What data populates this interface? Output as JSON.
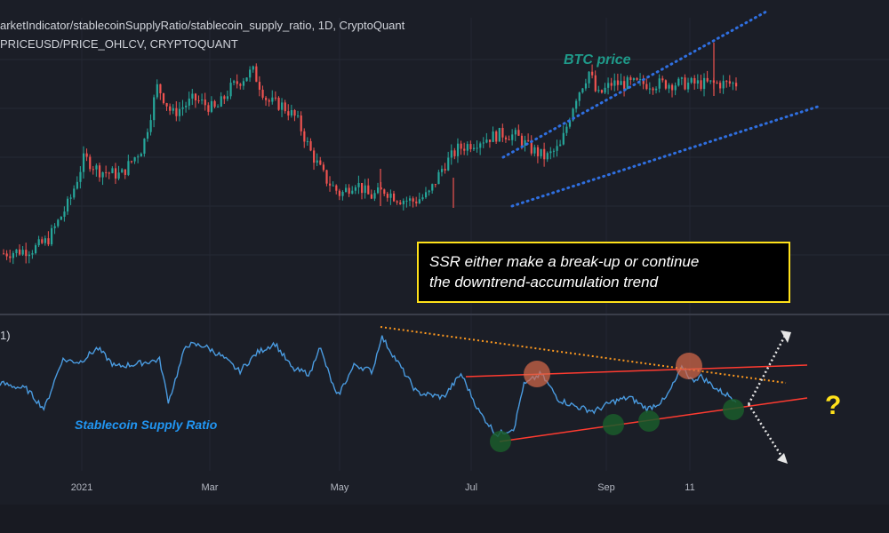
{
  "header": {
    "line1": "arketIndicator/stablecoinSupplyRatio/stablecoin_supply_ratio, 1D, CryptoQuant",
    "line2": "PRICEUSD/PRICE_OHLCV, CRYPTOQUANT",
    "lower_pane_tag": "1)"
  },
  "annotations": {
    "btc_label": "BTC price",
    "ssr_label": "Stablecoin Supply Ratio",
    "note_line1": "SSR either make a break-up or continue",
    "note_line2": "the downtrend-accumulation trend",
    "question": "?"
  },
  "colors": {
    "background": "#1b1e27",
    "up_candle": "#26a69a",
    "down_candle": "#ef5350",
    "ssr_line": "#4a9be0",
    "channel_dots": "#2f6fe0",
    "resistance": "#ff3b30",
    "down_trend": "#ff9a1f",
    "note_border": "#ffe11a",
    "note_fill": "#000000",
    "orange_marker": "#d96a4a",
    "green_marker": "#1a5c2c"
  },
  "chart_data": [
    {
      "type": "candlestick",
      "series_label": "PRICEUSD/PRICE_OHLCV, CRYPTOQUANT",
      "interval": "1D",
      "x_tick_labels": [
        "2021",
        "Mar",
        "May",
        "Jul",
        "Sep",
        "11"
      ],
      "close_path": [
        [
          0.0,
          0.06
        ],
        [
          0.04,
          0.08
        ],
        [
          0.06,
          0.12
        ],
        [
          0.09,
          0.3
        ],
        [
          0.11,
          0.5
        ],
        [
          0.13,
          0.44
        ],
        [
          0.16,
          0.42
        ],
        [
          0.19,
          0.55
        ],
        [
          0.21,
          0.83
        ],
        [
          0.23,
          0.7
        ],
        [
          0.26,
          0.77
        ],
        [
          0.29,
          0.72
        ],
        [
          0.31,
          0.82
        ],
        [
          0.34,
          0.9
        ],
        [
          0.36,
          0.76
        ],
        [
          0.38,
          0.74
        ],
        [
          0.4,
          0.68
        ],
        [
          0.42,
          0.52
        ],
        [
          0.44,
          0.4
        ],
        [
          0.46,
          0.33
        ],
        [
          0.48,
          0.39
        ],
        [
          0.5,
          0.32
        ],
        [
          0.52,
          0.35
        ],
        [
          0.54,
          0.31
        ],
        [
          0.56,
          0.3
        ],
        [
          0.58,
          0.33
        ],
        [
          0.6,
          0.46
        ],
        [
          0.62,
          0.54
        ],
        [
          0.65,
          0.58
        ],
        [
          0.68,
          0.61
        ],
        [
          0.7,
          0.6
        ],
        [
          0.72,
          0.54
        ],
        [
          0.74,
          0.5
        ],
        [
          0.76,
          0.55
        ],
        [
          0.78,
          0.77
        ],
        [
          0.8,
          0.9
        ],
        [
          0.81,
          0.78
        ],
        [
          0.83,
          0.84
        ]
      ],
      "annotation": "BTC price"
    },
    {
      "type": "line",
      "series_label": "Stablecoin Supply Ratio",
      "x_tick_labels": [
        "2021",
        "Mar",
        "May",
        "Jul",
        "Sep",
        "11"
      ],
      "values_path": [
        [
          0.0,
          0.52
        ],
        [
          0.03,
          0.47
        ],
        [
          0.05,
          0.3
        ],
        [
          0.07,
          0.72
        ],
        [
          0.09,
          0.7
        ],
        [
          0.11,
          0.82
        ],
        [
          0.13,
          0.66
        ],
        [
          0.15,
          0.68
        ],
        [
          0.18,
          0.72
        ],
        [
          0.19,
          0.36
        ],
        [
          0.21,
          0.85
        ],
        [
          0.23,
          0.84
        ],
        [
          0.25,
          0.75
        ],
        [
          0.27,
          0.62
        ],
        [
          0.29,
          0.78
        ],
        [
          0.31,
          0.86
        ],
        [
          0.33,
          0.64
        ],
        [
          0.35,
          0.6
        ],
        [
          0.36,
          0.84
        ],
        [
          0.38,
          0.4
        ],
        [
          0.4,
          0.68
        ],
        [
          0.42,
          0.62
        ],
        [
          0.43,
          0.92
        ],
        [
          0.45,
          0.68
        ],
        [
          0.47,
          0.44
        ],
        [
          0.5,
          0.4
        ],
        [
          0.52,
          0.6
        ],
        [
          0.54,
          0.28
        ],
        [
          0.56,
          0.08
        ],
        [
          0.58,
          0.14
        ],
        [
          0.59,
          0.5
        ],
        [
          0.61,
          0.6
        ],
        [
          0.63,
          0.38
        ],
        [
          0.65,
          0.32
        ],
        [
          0.67,
          0.28
        ],
        [
          0.69,
          0.36
        ],
        [
          0.71,
          0.4
        ],
        [
          0.73,
          0.3
        ],
        [
          0.75,
          0.38
        ],
        [
          0.77,
          0.66
        ],
        [
          0.78,
          0.54
        ],
        [
          0.79,
          0.58
        ],
        [
          0.81,
          0.46
        ],
        [
          0.83,
          0.38
        ]
      ],
      "annotation": "Stablecoin Supply Ratio"
    }
  ]
}
